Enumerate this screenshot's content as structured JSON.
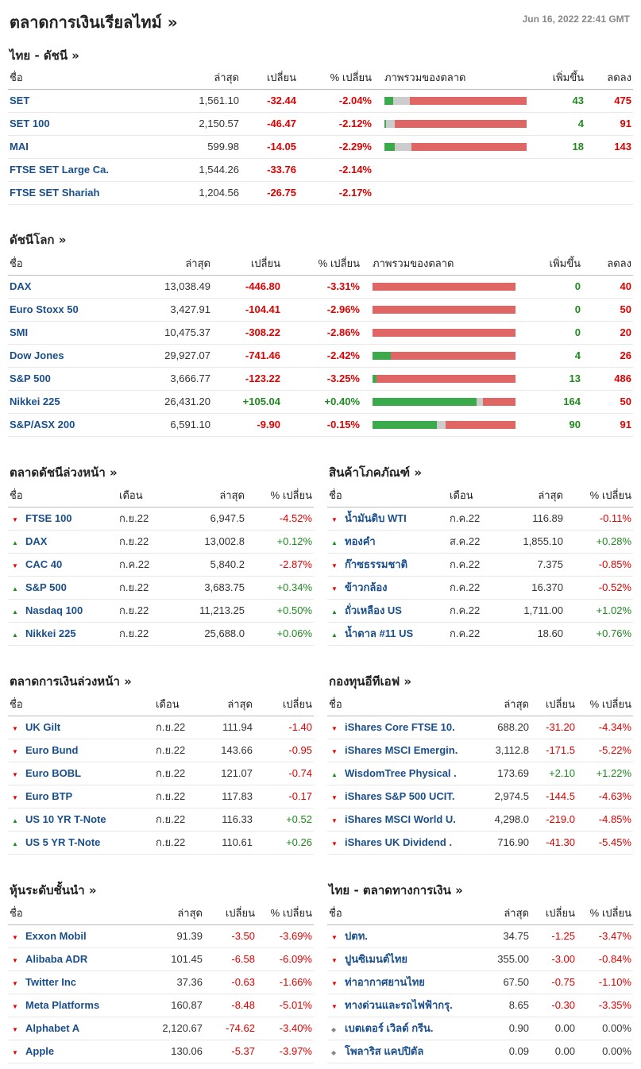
{
  "header": {
    "title": "ตลาดการเงินเรียลไทม์ »",
    "datetime": "Jun 16, 2022 22:41 GMT"
  },
  "colors": {
    "up": "#1e8a1e",
    "down": "#e00000",
    "name": "#1a4f8c",
    "bar_up": "#3aaa4a",
    "bar_neutral": "#cccccc",
    "bar_down": "#e06666"
  },
  "thai_indices": {
    "title": "ไทย - ดัชนี  »",
    "headers": [
      "ชื่อ",
      "ล่าสุด",
      "เปลี่ยน",
      "% เปลี่ยน",
      "ภาพรวมของตลาด",
      "เพิ่มขึ้น",
      "ลดลง"
    ],
    "rows": [
      {
        "name": "SET",
        "last": "1,561.10",
        "chg": "-32.44",
        "pct": "-2.04%",
        "dir": "down",
        "up": "43",
        "down": "475",
        "bar": [
          6,
          12,
          82
        ]
      },
      {
        "name": "SET 100",
        "last": "2,150.57",
        "chg": "-46.47",
        "pct": "-2.12%",
        "dir": "down",
        "up": "4",
        "down": "91",
        "bar": [
          1,
          6,
          93
        ]
      },
      {
        "name": "MAI",
        "last": "599.98",
        "chg": "-14.05",
        "pct": "-2.29%",
        "dir": "down",
        "up": "18",
        "down": "143",
        "bar": [
          7,
          12,
          81
        ]
      },
      {
        "name": "FTSE SET Large Ca.",
        "last": "1,544.26",
        "chg": "-33.76",
        "pct": "-2.14%",
        "dir": "down",
        "up": "",
        "down": "",
        "bar": null
      },
      {
        "name": "FTSE SET Shariah",
        "last": "1,204.56",
        "chg": "-26.75",
        "pct": "-2.17%",
        "dir": "down",
        "up": "",
        "down": "",
        "bar": null
      }
    ]
  },
  "world_indices": {
    "title": "ดัชนีโลก »",
    "headers": [
      "ชื่อ",
      "ล่าสุด",
      "เปลี่ยน",
      "% เปลี่ยน",
      "ภาพรวมของตลาด",
      "เพิ่มขึ้น",
      "ลดลง"
    ],
    "rows": [
      {
        "name": "DAX",
        "last": "13,038.49",
        "chg": "-446.80",
        "pct": "-3.31%",
        "dir": "down",
        "up": "0",
        "down": "40",
        "bar": [
          0,
          0,
          100
        ]
      },
      {
        "name": "Euro Stoxx 50",
        "last": "3,427.91",
        "chg": "-104.41",
        "pct": "-2.96%",
        "dir": "down",
        "up": "0",
        "down": "50",
        "bar": [
          0,
          0,
          100
        ]
      },
      {
        "name": "SMI",
        "last": "10,475.37",
        "chg": "-308.22",
        "pct": "-2.86%",
        "dir": "down",
        "up": "0",
        "down": "20",
        "bar": [
          0,
          0,
          100
        ]
      },
      {
        "name": "Dow Jones",
        "last": "29,927.07",
        "chg": "-741.46",
        "pct": "-2.42%",
        "dir": "down",
        "up": "4",
        "down": "26",
        "bar": [
          13,
          0,
          87
        ]
      },
      {
        "name": "S&P 500",
        "last": "3,666.77",
        "chg": "-123.22",
        "pct": "-3.25%",
        "dir": "down",
        "up": "13",
        "down": "486",
        "bar": [
          3,
          0,
          97
        ]
      },
      {
        "name": "Nikkei 225",
        "last": "26,431.20",
        "chg": "+105.04",
        "pct": "+0.40%",
        "dir": "up",
        "up": "164",
        "down": "50",
        "bar": [
          73,
          4,
          23
        ]
      },
      {
        "name": "S&P/ASX 200",
        "last": "6,591.10",
        "chg": "-9.90",
        "pct": "-0.15%",
        "dir": "down",
        "up": "90",
        "down": "91",
        "bar": [
          45,
          6,
          49
        ]
      }
    ]
  },
  "index_futures": {
    "title": "ตลาดดัชนีล่วงหน้า »",
    "headers": [
      "ชื่อ",
      "เดือน",
      "ล่าสุด",
      "% เปลี่ยน"
    ],
    "rows": [
      {
        "name": "FTSE 100",
        "month": "ก.ย.22",
        "last": "6,947.5",
        "pct": "-4.52%",
        "dir": "down"
      },
      {
        "name": "DAX",
        "month": "ก.ย.22",
        "last": "13,002.8",
        "pct": "+0.12%",
        "dir": "up"
      },
      {
        "name": "CAC 40",
        "month": "ก.ค.22",
        "last": "5,840.2",
        "pct": "-2.87%",
        "dir": "down"
      },
      {
        "name": "S&P 500",
        "month": "ก.ย.22",
        "last": "3,683.75",
        "pct": "+0.34%",
        "dir": "up"
      },
      {
        "name": "Nasdaq 100",
        "month": "ก.ย.22",
        "last": "11,213.25",
        "pct": "+0.50%",
        "dir": "up"
      },
      {
        "name": "Nikkei 225",
        "month": "ก.ย.22",
        "last": "25,688.0",
        "pct": "+0.06%",
        "dir": "up"
      }
    ]
  },
  "commodities": {
    "title": "สินค้าโภคภัณฑ์ »",
    "headers": [
      "ชื่อ",
      "เดือน",
      "ล่าสุด",
      "% เปลี่ยน"
    ],
    "rows": [
      {
        "name": "น้ำมันดิบ WTI",
        "month": "ก.ค.22",
        "last": "116.89",
        "pct": "-0.11%",
        "dir": "down"
      },
      {
        "name": "ทองคำ",
        "month": "ส.ค.22",
        "last": "1,855.10",
        "pct": "+0.28%",
        "dir": "up"
      },
      {
        "name": "ก๊าซธรรมชาติ",
        "month": "ก.ค.22",
        "last": "7.375",
        "pct": "-0.85%",
        "dir": "down"
      },
      {
        "name": "ข้าวกล้อง",
        "month": "ก.ค.22",
        "last": "16.370",
        "pct": "-0.52%",
        "dir": "down"
      },
      {
        "name": "ถั่วเหลือง US",
        "month": "ก.ค.22",
        "last": "1,711.00",
        "pct": "+1.02%",
        "dir": "up"
      },
      {
        "name": "น้ำตาล #11 US",
        "month": "ก.ค.22",
        "last": "18.60",
        "pct": "+0.76%",
        "dir": "up"
      }
    ]
  },
  "bond_futures": {
    "title": "ตลาดการเงินล่วงหน้า »",
    "headers": [
      "ชื่อ",
      "เดือน",
      "ล่าสุด",
      "เปลี่ยน"
    ],
    "rows": [
      {
        "name": "UK Gilt",
        "month": "ก.ย.22",
        "last": "111.94",
        "chg": "-1.40",
        "dir": "down"
      },
      {
        "name": "Euro Bund",
        "month": "ก.ย.22",
        "last": "143.66",
        "chg": "-0.95",
        "dir": "down"
      },
      {
        "name": "Euro BOBL",
        "month": "ก.ย.22",
        "last": "121.07",
        "chg": "-0.74",
        "dir": "down"
      },
      {
        "name": "Euro BTP",
        "month": "ก.ย.22",
        "last": "117.83",
        "chg": "-0.17",
        "dir": "down"
      },
      {
        "name": "US 10 YR T-Note",
        "month": "ก.ย.22",
        "last": "116.33",
        "chg": "+0.52",
        "dir": "up"
      },
      {
        "name": "US 5 YR T-Note",
        "month": "ก.ย.22",
        "last": "110.61",
        "chg": "+0.26",
        "dir": "up"
      }
    ]
  },
  "etfs": {
    "title": "กองทุนอีทีเอฟ »",
    "headers": [
      "ชื่อ",
      "ล่าสุด",
      "เปลี่ยน",
      "% เปลี่ยน"
    ],
    "rows": [
      {
        "name": "iShares Core FTSE 10.",
        "last": "688.20",
        "chg": "-31.20",
        "pct": "-4.34%",
        "dir": "down"
      },
      {
        "name": "iShares MSCI Emergin.",
        "last": "3,112.8",
        "chg": "-171.5",
        "pct": "-5.22%",
        "dir": "down"
      },
      {
        "name": "WisdomTree Physical .",
        "last": "173.69",
        "chg": "+2.10",
        "pct": "+1.22%",
        "dir": "up"
      },
      {
        "name": "iShares S&P 500 UCIT.",
        "last": "2,974.5",
        "chg": "-144.5",
        "pct": "-4.63%",
        "dir": "down"
      },
      {
        "name": "iShares MSCI World U.",
        "last": "4,298.0",
        "chg": "-219.0",
        "pct": "-4.85%",
        "dir": "down"
      },
      {
        "name": "iShares UK Dividend .",
        "last": "716.90",
        "chg": "-41.30",
        "pct": "-5.45%",
        "dir": "down"
      }
    ]
  },
  "top_stocks": {
    "title": "หุ้นระดับชั้นนำ »",
    "headers": [
      "ชื่อ",
      "ล่าสุด",
      "เปลี่ยน",
      "% เปลี่ยน"
    ],
    "rows": [
      {
        "name": "Exxon Mobil",
        "last": "91.39",
        "chg": "-3.50",
        "pct": "-3.69%",
        "dir": "down"
      },
      {
        "name": "Alibaba ADR",
        "last": "101.45",
        "chg": "-6.58",
        "pct": "-6.09%",
        "dir": "down"
      },
      {
        "name": "Twitter Inc",
        "last": "37.36",
        "chg": "-0.63",
        "pct": "-1.66%",
        "dir": "down"
      },
      {
        "name": "Meta Platforms",
        "last": "160.87",
        "chg": "-8.48",
        "pct": "-5.01%",
        "dir": "down"
      },
      {
        "name": "Alphabet A",
        "last": "2,120.67",
        "chg": "-74.62",
        "pct": "-3.40%",
        "dir": "down"
      },
      {
        "name": "Apple",
        "last": "130.06",
        "chg": "-5.37",
        "pct": "-3.97%",
        "dir": "down"
      }
    ]
  },
  "thai_stocks": {
    "title": "ไทย - ตลาดทางการเงิน »",
    "headers": [
      "ชื่อ",
      "ล่าสุด",
      "เปลี่ยน",
      "% เปลี่ยน"
    ],
    "rows": [
      {
        "name": "ปตท.",
        "last": "34.75",
        "chg": "-1.25",
        "pct": "-3.47%",
        "dir": "down"
      },
      {
        "name": "ปูนซิเมนต์ไทย",
        "last": "355.00",
        "chg": "-3.00",
        "pct": "-0.84%",
        "dir": "down"
      },
      {
        "name": "ท่าอากาศยานไทย",
        "last": "67.50",
        "chg": "-0.75",
        "pct": "-1.10%",
        "dir": "down"
      },
      {
        "name": "ทางด่วนและรถไฟฟ้ากรุ.",
        "last": "8.65",
        "chg": "-0.30",
        "pct": "-3.35%",
        "dir": "down"
      },
      {
        "name": "เบตเตอร์ เวิลด์ กรีน.",
        "last": "0.90",
        "chg": "0.00",
        "pct": "0.00%",
        "dir": "none"
      },
      {
        "name": "โพลาริส แคปปิตัล",
        "last": "0.09",
        "chg": "0.00",
        "pct": "0.00%",
        "dir": "none"
      }
    ]
  }
}
